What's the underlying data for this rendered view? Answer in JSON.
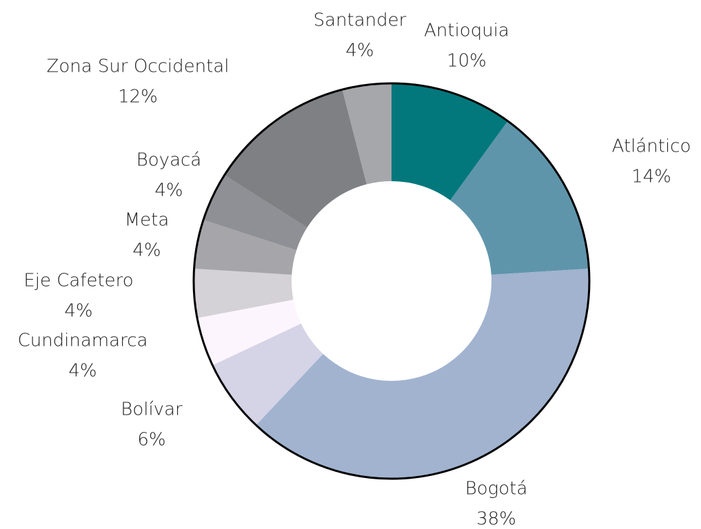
{
  "chart_data": {
    "type": "donut",
    "categories": [
      "Antioquia",
      "Atlántico",
      "Bogotá",
      "Bolívar",
      "Cundinamarca",
      "Eje Cafetero",
      "Meta",
      "Boyacá",
      "Zona Sur Occidental",
      "Santander"
    ],
    "values": [
      10,
      14,
      38,
      6,
      4,
      4,
      4,
      4,
      12,
      4
    ],
    "value_labels": [
      "10%",
      "14%",
      "38%",
      "6%",
      "4%",
      "4%",
      "4%",
      "4%",
      "12%",
      "4%"
    ],
    "colors": [
      "#03787c",
      "#5f95ab",
      "#a1b3cf",
      "#d5d3e6",
      "#fdf5fd",
      "#d4d1d7",
      "#a6a6aa",
      "#8f9095",
      "#7e8084",
      "#a6a7ab"
    ]
  }
}
